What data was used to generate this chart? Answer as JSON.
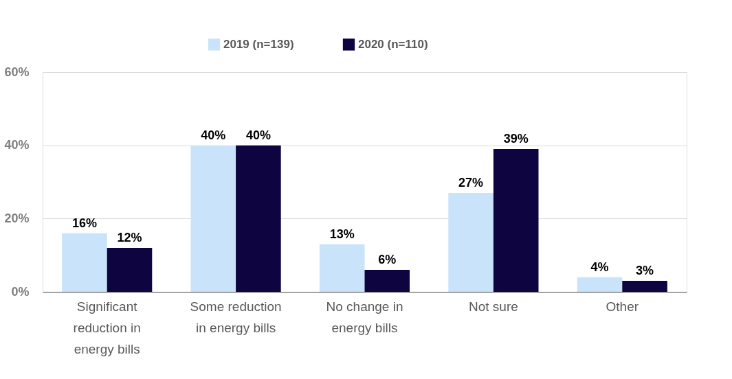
{
  "chart_data": {
    "type": "bar",
    "categories": [
      "Significant reduction in energy bills",
      "Some reduction in energy bills",
      "No change in energy bills",
      "Not sure",
      "Other"
    ],
    "series": [
      {
        "name": "2019 (n=139)",
        "color": "#c9e3fb",
        "values": [
          16,
          40,
          13,
          27,
          4
        ],
        "value_labels": [
          "16%",
          "40%",
          "13%",
          "27%",
          "4%"
        ]
      },
      {
        "name": "2020 (n=110)",
        "color": "#0d0440",
        "values": [
          12,
          40,
          6,
          39,
          3
        ],
        "value_labels": [
          "12%",
          "40%",
          "6%",
          "39%",
          "3%"
        ]
      }
    ],
    "ylim": [
      0,
      60
    ],
    "yticks": [
      {
        "value": 0,
        "label": "0%"
      },
      {
        "value": 20,
        "label": "20%"
      },
      {
        "value": 40,
        "label": "40%"
      },
      {
        "value": 60,
        "label": "60%"
      }
    ],
    "grid": "y",
    "legend": "top"
  }
}
